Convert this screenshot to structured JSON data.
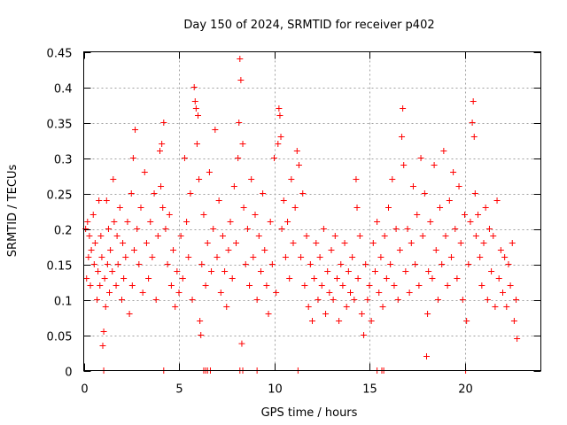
{
  "chart_data": {
    "type": "scatter",
    "title": "Day 150 of 2024, SRMTID for receiver p402",
    "xlabel": "GPS time / hours",
    "ylabel": "SRMTID / TECUs",
    "xlim": [
      0,
      24
    ],
    "ylim": [
      0,
      0.45
    ],
    "xticks": [
      0,
      5,
      10,
      15,
      20
    ],
    "xtick_labels": [
      "0",
      "5",
      "10",
      "15",
      "20"
    ],
    "yticks": [
      0,
      0.05,
      0.1,
      0.15,
      0.2,
      0.25,
      0.3,
      0.35,
      0.4,
      0.45
    ],
    "ytick_labels": [
      "0",
      "0.05",
      "0.1",
      "0.15",
      "0.2",
      "0.25",
      "0.3",
      "0.35",
      "0.4",
      "0.45"
    ],
    "grid": true,
    "marker": "+",
    "color": "#ff0000",
    "series": [
      {
        "name": "SRMTID",
        "points": [
          [
            0.1,
            0.2
          ],
          [
            0.15,
            0.13
          ],
          [
            0.2,
            0.21
          ],
          [
            0.25,
            0.16
          ],
          [
            0.3,
            0.19
          ],
          [
            0.35,
            0.12
          ],
          [
            0.4,
            0.17
          ],
          [
            0.5,
            0.22
          ],
          [
            0.55,
            0.15
          ],
          [
            0.6,
            0.18
          ],
          [
            0.7,
            0.1
          ],
          [
            0.75,
            0.14
          ],
          [
            0.8,
            0.24
          ],
          [
            0.85,
            0.12
          ],
          [
            0.9,
            0.19
          ],
          [
            0.95,
            0.16
          ],
          [
            1.0,
            0.035
          ],
          [
            1.05,
            0.055
          ],
          [
            1.1,
            0.13
          ],
          [
            1.15,
            0.09
          ],
          [
            1.2,
            0.24
          ],
          [
            1.25,
            0.15
          ],
          [
            1.3,
            0.2
          ],
          [
            1.35,
            0.11
          ],
          [
            1.4,
            0.17
          ],
          [
            1.5,
            0.14
          ],
          [
            1.55,
            0.27
          ],
          [
            1.6,
            0.21
          ],
          [
            1.7,
            0.12
          ],
          [
            1.75,
            0.19
          ],
          [
            1.8,
            0.15
          ],
          [
            1.9,
            0.23
          ],
          [
            2.0,
            0.1
          ],
          [
            2.05,
            0.18
          ],
          [
            2.1,
            0.13
          ],
          [
            2.2,
            0.16
          ],
          [
            2.3,
            0.21
          ],
          [
            2.4,
            0.08
          ],
          [
            2.5,
            0.25
          ],
          [
            2.55,
            0.12
          ],
          [
            2.6,
            0.3
          ],
          [
            2.65,
            0.17
          ],
          [
            2.7,
            0.34
          ],
          [
            2.8,
            0.2
          ],
          [
            2.9,
            0.15
          ],
          [
            3.0,
            0.23
          ],
          [
            3.1,
            0.11
          ],
          [
            3.2,
            0.28
          ],
          [
            3.3,
            0.18
          ],
          [
            3.4,
            0.13
          ],
          [
            3.5,
            0.21
          ],
          [
            3.6,
            0.16
          ],
          [
            3.7,
            0.25
          ],
          [
            3.8,
            0.1
          ],
          [
            3.9,
            0.19
          ],
          [
            4.0,
            0.31
          ],
          [
            4.05,
            0.26
          ],
          [
            4.1,
            0.32
          ],
          [
            4.15,
            0.23
          ],
          [
            4.2,
            0.35
          ],
          [
            4.3,
            0.2
          ],
          [
            4.4,
            0.15
          ],
          [
            4.5,
            0.22
          ],
          [
            4.6,
            0.12
          ],
          [
            4.7,
            0.17
          ],
          [
            4.8,
            0.09
          ],
          [
            4.9,
            0.14
          ],
          [
            5.0,
            0.11
          ],
          [
            5.1,
            0.19
          ],
          [
            5.2,
            0.13
          ],
          [
            5.3,
            0.3
          ],
          [
            5.4,
            0.21
          ],
          [
            5.5,
            0.16
          ],
          [
            5.6,
            0.25
          ],
          [
            5.7,
            0.1
          ],
          [
            5.8,
            0.4
          ],
          [
            5.85,
            0.38
          ],
          [
            5.9,
            0.37
          ],
          [
            5.95,
            0.32
          ],
          [
            6.0,
            0.36
          ],
          [
            6.05,
            0.27
          ],
          [
            6.1,
            0.07
          ],
          [
            6.15,
            0.05
          ],
          [
            6.2,
            0.15
          ],
          [
            6.3,
            0.22
          ],
          [
            6.4,
            0.12
          ],
          [
            6.5,
            0.18
          ],
          [
            6.6,
            0.28
          ],
          [
            6.7,
            0.14
          ],
          [
            6.8,
            0.2
          ],
          [
            6.9,
            0.34
          ],
          [
            7.0,
            0.16
          ],
          [
            7.1,
            0.24
          ],
          [
            7.2,
            0.11
          ],
          [
            7.3,
            0.19
          ],
          [
            7.4,
            0.14
          ],
          [
            7.5,
            0.09
          ],
          [
            7.6,
            0.17
          ],
          [
            7.7,
            0.21
          ],
          [
            7.8,
            0.13
          ],
          [
            7.9,
            0.26
          ],
          [
            8.0,
            0.18
          ],
          [
            8.1,
            0.3
          ],
          [
            8.15,
            0.35
          ],
          [
            8.2,
            0.44
          ],
          [
            8.25,
            0.41
          ],
          [
            8.3,
            0.038
          ],
          [
            8.35,
            0.32
          ],
          [
            8.4,
            0.23
          ],
          [
            8.5,
            0.15
          ],
          [
            8.6,
            0.2
          ],
          [
            8.7,
            0.12
          ],
          [
            8.8,
            0.27
          ],
          [
            8.9,
            0.16
          ],
          [
            9.0,
            0.22
          ],
          [
            9.1,
            0.1
          ],
          [
            9.2,
            0.19
          ],
          [
            9.3,
            0.14
          ],
          [
            9.4,
            0.25
          ],
          [
            9.5,
            0.17
          ],
          [
            9.6,
            0.12
          ],
          [
            9.7,
            0.08
          ],
          [
            9.8,
            0.21
          ],
          [
            9.9,
            0.15
          ],
          [
            10.0,
            0.3
          ],
          [
            10.1,
            0.11
          ],
          [
            10.2,
            0.32
          ],
          [
            10.25,
            0.37
          ],
          [
            10.3,
            0.36
          ],
          [
            10.35,
            0.33
          ],
          [
            10.4,
            0.2
          ],
          [
            10.5,
            0.24
          ],
          [
            10.6,
            0.16
          ],
          [
            10.7,
            0.21
          ],
          [
            10.8,
            0.13
          ],
          [
            10.9,
            0.27
          ],
          [
            11.0,
            0.18
          ],
          [
            11.1,
            0.23
          ],
          [
            11.2,
            0.31
          ],
          [
            11.3,
            0.29
          ],
          [
            11.4,
            0.16
          ],
          [
            11.5,
            0.25
          ],
          [
            11.6,
            0.12
          ],
          [
            11.7,
            0.19
          ],
          [
            11.8,
            0.09
          ],
          [
            11.9,
            0.15
          ],
          [
            12.0,
            0.07
          ],
          [
            12.1,
            0.13
          ],
          [
            12.2,
            0.18
          ],
          [
            12.3,
            0.1
          ],
          [
            12.4,
            0.16
          ],
          [
            12.5,
            0.12
          ],
          [
            12.6,
            0.2
          ],
          [
            12.7,
            0.08
          ],
          [
            12.8,
            0.14
          ],
          [
            12.9,
            0.11
          ],
          [
            13.0,
            0.17
          ],
          [
            13.1,
            0.1
          ],
          [
            13.2,
            0.19
          ],
          [
            13.3,
            0.13
          ],
          [
            13.4,
            0.07
          ],
          [
            13.5,
            0.15
          ],
          [
            13.6,
            0.12
          ],
          [
            13.7,
            0.18
          ],
          [
            13.8,
            0.09
          ],
          [
            13.9,
            0.14
          ],
          [
            14.0,
            0.11
          ],
          [
            14.1,
            0.16
          ],
          [
            14.2,
            0.1
          ],
          [
            14.3,
            0.27
          ],
          [
            14.35,
            0.23
          ],
          [
            14.4,
            0.13
          ],
          [
            14.5,
            0.19
          ],
          [
            14.6,
            0.08
          ],
          [
            14.7,
            0.05
          ],
          [
            14.8,
            0.15
          ],
          [
            14.9,
            0.1
          ],
          [
            15.0,
            0.12
          ],
          [
            15.1,
            0.07
          ],
          [
            15.2,
            0.18
          ],
          [
            15.3,
            0.14
          ],
          [
            15.4,
            0.21
          ],
          [
            15.5,
            0.11
          ],
          [
            15.6,
            0.16
          ],
          [
            15.7,
            0.09
          ],
          [
            15.8,
            0.19
          ],
          [
            15.9,
            0.13
          ],
          [
            16.0,
            0.23
          ],
          [
            16.1,
            0.15
          ],
          [
            16.2,
            0.27
          ],
          [
            16.3,
            0.12
          ],
          [
            16.4,
            0.2
          ],
          [
            16.5,
            0.1
          ],
          [
            16.6,
            0.17
          ],
          [
            16.7,
            0.33
          ],
          [
            16.75,
            0.37
          ],
          [
            16.8,
            0.29
          ],
          [
            16.9,
            0.14
          ],
          [
            17.0,
            0.2
          ],
          [
            17.1,
            0.11
          ],
          [
            17.2,
            0.18
          ],
          [
            17.3,
            0.26
          ],
          [
            17.4,
            0.15
          ],
          [
            17.5,
            0.22
          ],
          [
            17.6,
            0.12
          ],
          [
            17.7,
            0.3
          ],
          [
            17.8,
            0.19
          ],
          [
            17.9,
            0.25
          ],
          [
            18.0,
            0.02
          ],
          [
            18.05,
            0.08
          ],
          [
            18.1,
            0.14
          ],
          [
            18.2,
            0.21
          ],
          [
            18.3,
            0.13
          ],
          [
            18.4,
            0.29
          ],
          [
            18.5,
            0.17
          ],
          [
            18.6,
            0.1
          ],
          [
            18.7,
            0.23
          ],
          [
            18.8,
            0.15
          ],
          [
            18.9,
            0.31
          ],
          [
            19.0,
            0.19
          ],
          [
            19.1,
            0.12
          ],
          [
            19.2,
            0.24
          ],
          [
            19.3,
            0.16
          ],
          [
            19.4,
            0.28
          ],
          [
            19.5,
            0.2
          ],
          [
            19.6,
            0.13
          ],
          [
            19.7,
            0.26
          ],
          [
            19.8,
            0.18
          ],
          [
            19.9,
            0.1
          ],
          [
            20.0,
            0.22
          ],
          [
            20.1,
            0.07
          ],
          [
            20.2,
            0.15
          ],
          [
            20.3,
            0.21
          ],
          [
            20.4,
            0.35
          ],
          [
            20.45,
            0.38
          ],
          [
            20.5,
            0.33
          ],
          [
            20.55,
            0.25
          ],
          [
            20.6,
            0.19
          ],
          [
            20.7,
            0.22
          ],
          [
            20.8,
            0.16
          ],
          [
            20.9,
            0.12
          ],
          [
            21.0,
            0.18
          ],
          [
            21.1,
            0.23
          ],
          [
            21.2,
            0.1
          ],
          [
            21.3,
            0.2
          ],
          [
            21.4,
            0.14
          ],
          [
            21.5,
            0.19
          ],
          [
            21.6,
            0.09
          ],
          [
            21.7,
            0.24
          ],
          [
            21.8,
            0.13
          ],
          [
            21.9,
            0.17
          ],
          [
            22.0,
            0.11
          ],
          [
            22.1,
            0.16
          ],
          [
            22.2,
            0.09
          ],
          [
            22.3,
            0.15
          ],
          [
            22.4,
            0.12
          ],
          [
            22.5,
            0.18
          ],
          [
            22.6,
            0.07
          ],
          [
            22.7,
            0.1
          ],
          [
            22.75,
            0.045
          ],
          [
            1.05,
            0.0
          ],
          [
            4.2,
            0.0
          ],
          [
            6.3,
            0.0
          ],
          [
            6.4,
            0.0
          ],
          [
            6.5,
            0.0
          ],
          [
            6.65,
            0.0
          ],
          [
            8.2,
            0.0
          ],
          [
            8.35,
            0.0
          ],
          [
            9.1,
            0.0
          ],
          [
            11.25,
            0.0
          ],
          [
            15.4,
            0.0
          ],
          [
            15.65,
            0.0
          ],
          [
            15.75,
            0.0
          ],
          [
            20.05,
            0.0
          ]
        ]
      }
    ]
  }
}
